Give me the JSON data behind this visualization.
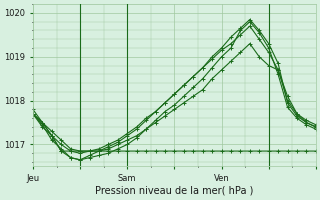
{
  "bg_color": "#d8f0e0",
  "grid_color": "#a0c8a0",
  "line_color": "#1a6b1a",
  "marker_color": "#1a6b1a",
  "title": "Pression niveau de la mer( hPa )",
  "ylim": [
    1016.5,
    1020.2
  ],
  "yticks": [
    1017,
    1018,
    1019,
    1020
  ],
  "xlabel_ticks": [
    0,
    12,
    24,
    36,
    48,
    60,
    72
  ],
  "xlabel_labels": [
    "Jeu",
    "",
    "Sam",
    "",
    "Ven",
    "",
    ""
  ],
  "day_lines": [
    12,
    24,
    60
  ],
  "series": [
    [
      1017.7,
      1017.4,
      1017.2,
      1016.85,
      1016.85,
      1016.85,
      1016.85,
      1016.85,
      1016.85,
      1016.85,
      1016.85,
      1016.85,
      1016.85,
      1016.85,
      1016.85,
      1016.85,
      1016.85,
      1016.85,
      1016.85,
      1016.85,
      1016.85,
      1016.85,
      1016.85,
      1016.85,
      1016.85,
      1016.85,
      1016.85,
      1016.85,
      1016.85,
      1016.85,
      1016.85
    ],
    [
      1017.7,
      1017.5,
      1017.3,
      1017.1,
      1016.9,
      1016.85,
      1016.85,
      1016.85,
      1016.9,
      1017.0,
      1017.1,
      1017.2,
      1017.35,
      1017.5,
      1017.65,
      1017.8,
      1017.95,
      1018.1,
      1018.25,
      1018.5,
      1018.7,
      1018.9,
      1019.1,
      1019.3,
      1019.0,
      1018.8,
      1018.7,
      1018.1,
      1017.7,
      1017.5,
      1017.4
    ],
    [
      1017.7,
      1017.5,
      1017.2,
      1016.85,
      1016.7,
      1016.65,
      1016.7,
      1016.75,
      1016.8,
      1016.9,
      1017.0,
      1017.15,
      1017.35,
      1017.55,
      1017.75,
      1017.9,
      1018.1,
      1018.3,
      1018.5,
      1018.75,
      1019.0,
      1019.2,
      1019.6,
      1019.8,
      1019.55,
      1019.2,
      1018.6,
      1017.85,
      1017.6,
      1017.45,
      1017.35
    ],
    [
      1017.7,
      1017.45,
      1017.1,
      1016.9,
      1016.7,
      1016.65,
      1016.75,
      1016.85,
      1016.95,
      1017.05,
      1017.2,
      1017.35,
      1017.55,
      1017.75,
      1017.95,
      1018.15,
      1018.35,
      1018.55,
      1018.75,
      1019.0,
      1019.2,
      1019.45,
      1019.65,
      1019.85,
      1019.6,
      1019.3,
      1018.85,
      1017.95,
      1017.65,
      1017.5,
      1017.4
    ],
    [
      1017.8,
      1017.5,
      1017.2,
      1017.0,
      1016.85,
      1016.8,
      1016.85,
      1016.9,
      1017.0,
      1017.1,
      1017.25,
      1017.4,
      1017.6,
      1017.75,
      1017.95,
      1018.15,
      1018.35,
      1018.55,
      1018.75,
      1018.95,
      1019.15,
      1019.3,
      1019.5,
      1019.7,
      1019.4,
      1019.1,
      1018.7,
      1018.0,
      1017.7,
      1017.55,
      1017.45
    ]
  ]
}
